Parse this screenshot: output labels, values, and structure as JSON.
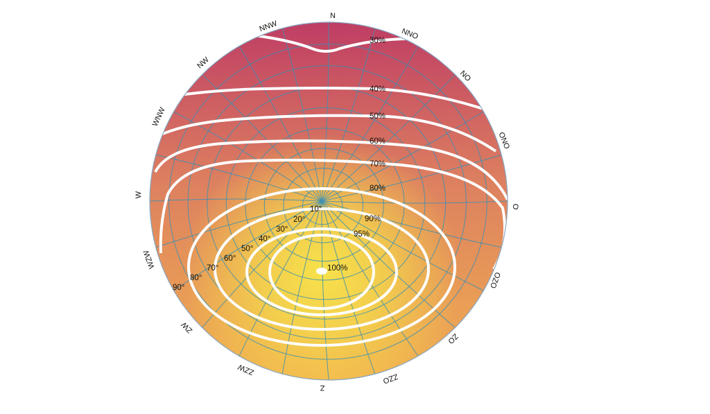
{
  "colors": {
    "top": "#bd3a64",
    "middle": "#dd8060",
    "bottom": "#f2b24f",
    "center": "#f7e24a",
    "grid": "#3b8fb4",
    "contour": "#ffffff",
    "rim": "#8aa6c1"
  },
  "compass": {
    "N": "N",
    "NNO": "NNO",
    "NO": "NO",
    "ONO": "ONO",
    "O": "O",
    "OZO": "OZO",
    "ZO": "ZO",
    "ZZO": "ZZO",
    "Z": "Z",
    "ZZW": "ZZW",
    "ZW": "ZW",
    "WZW": "WZW",
    "W": "W",
    "WNW": "WNW",
    "NW": "NW",
    "NNW": "NNW"
  },
  "contours": [
    {
      "label": "30%",
      "value": 30
    },
    {
      "label": "40%",
      "value": 40
    },
    {
      "label": "50%",
      "value": 50
    },
    {
      "label": "60%",
      "value": 60
    },
    {
      "label": "70%",
      "value": 70
    },
    {
      "label": "80%",
      "value": 80
    },
    {
      "label": "90%",
      "value": 90
    },
    {
      "label": "95%",
      "value": 95
    },
    {
      "label": "100%",
      "value": 100
    }
  ],
  "altitude_labels": [
    "10°",
    "20°",
    "30°",
    "40°",
    "50°",
    "60°",
    "70°",
    "80°",
    "90°"
  ]
}
